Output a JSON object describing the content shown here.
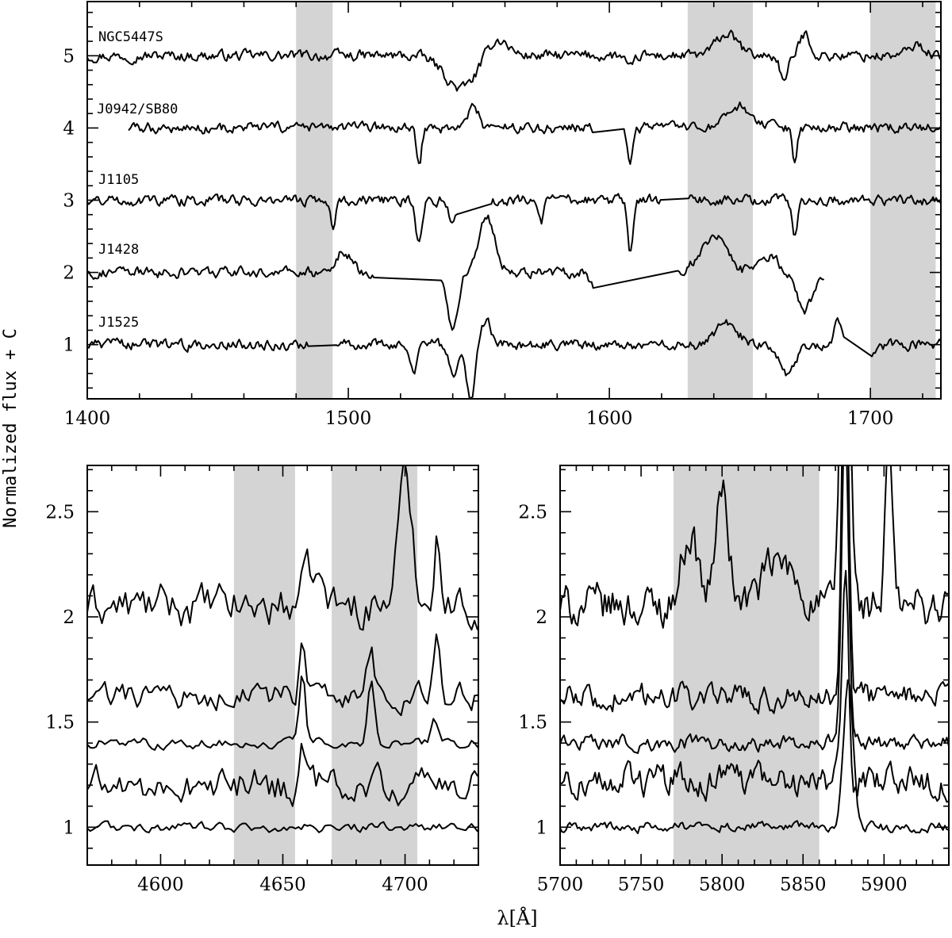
{
  "figure": {
    "ylabel": "Normalized flux + C",
    "xlabel": "λ[Å]"
  },
  "chart_data": [
    {
      "type": "line",
      "panel": "top",
      "xlim": [
        1400,
        1727
      ],
      "ylim": [
        0.25,
        5.75
      ],
      "xticks": [
        1400,
        1500,
        1600,
        1700
      ],
      "yticks": [
        1,
        2,
        3,
        4,
        5
      ],
      "shaded_regions": [
        [
          1480,
          1494
        ],
        [
          1630,
          1655
        ],
        [
          1700,
          1725
        ]
      ],
      "series": [
        {
          "name": "NGC5447S",
          "offset": 5,
          "x_range": [
            1400,
            1727
          ],
          "features": [
            [
              1543,
              -0.45,
              6
            ],
            [
              1557,
              0.25,
              4
            ],
            [
              1608,
              -0.2,
              1.5
            ],
            [
              1645,
              0.3,
              4
            ],
            [
              1667,
              -0.35,
              1.5
            ],
            [
              1675,
              0.3,
              2
            ],
            [
              1718,
              0.15,
              3
            ]
          ]
        },
        {
          "name": "J0942/SB80",
          "offset": 4,
          "x_range": [
            1416,
            1727
          ],
          "gaps": [
            [
              1594,
              1605
            ]
          ],
          "features": [
            [
              1527,
              -0.55,
              1
            ],
            [
              1548,
              0.3,
              2
            ],
            [
              1608,
              -0.5,
              1
            ],
            [
              1650,
              0.3,
              4
            ],
            [
              1671,
              -0.5,
              1
            ]
          ]
        },
        {
          "name": "J1105",
          "offset": 3,
          "x_range": [
            1400,
            1727
          ],
          "gaps": [
            [
              1542,
              1554
            ],
            [
              1620,
              1630
            ]
          ],
          "features": [
            [
              1494,
              -0.35,
              1
            ],
            [
              1527,
              -0.6,
              1.2
            ],
            [
              1540,
              -0.3,
              1.5
            ],
            [
              1574,
              -0.3,
              1
            ],
            [
              1608,
              -0.75,
              1
            ],
            [
              1671,
              -0.5,
              1
            ]
          ]
        },
        {
          "name": "J1428",
          "offset": 2,
          "x_range": [
            1400,
            1682
          ],
          "gaps": [
            [
              1510,
              1535
            ],
            [
              1594,
              1626
            ]
          ],
          "features": [
            [
              1498,
              0.3,
              3
            ],
            [
              1540,
              -0.8,
              2
            ],
            [
              1553,
              0.8,
              3
            ],
            [
              1595,
              -0.3,
              2
            ],
            [
              1640,
              0.5,
              5
            ],
            [
              1662,
              0.2,
              3
            ],
            [
              1675,
              -0.5,
              3
            ]
          ]
        },
        {
          "name": "J1525",
          "offset": 1,
          "x_range": [
            1400,
            1727
          ],
          "gaps": [
            [
              1485,
              1495
            ],
            [
              1690,
              1700
            ]
          ],
          "features": [
            [
              1525,
              -0.35,
              1.5
            ],
            [
              1540,
              -0.4,
              1.5
            ],
            [
              1547,
              -0.8,
              1.5
            ],
            [
              1553,
              0.3,
              2
            ],
            [
              1645,
              0.3,
              4
            ],
            [
              1668,
              -0.4,
              3
            ],
            [
              1688,
              0.3,
              2
            ],
            [
              1697,
              -0.6,
              2
            ]
          ]
        }
      ]
    },
    {
      "type": "line",
      "panel": "bottom-left",
      "xlim": [
        4570,
        4730
      ],
      "ylim": [
        0.82,
        2.72
      ],
      "xticks": [
        4600,
        4650,
        4700
      ],
      "yticks": [
        1,
        1.5,
        2,
        2.5
      ],
      "ytick_labels": [
        "1",
        "1.5",
        "2",
        "2.5"
      ],
      "shaded_regions": [
        [
          4630,
          4655
        ],
        [
          4670,
          4705
        ]
      ],
      "series": [
        {
          "offset": 2.05,
          "noise": 0.08,
          "features": [
            [
              4662,
              0.15,
              4
            ],
            [
              4700,
              0.6,
              3
            ],
            [
              4713,
              0.4,
              1.2
            ]
          ]
        },
        {
          "offset": 1.62,
          "noise": 0.05,
          "features": [
            [
              4658,
              0.3,
              1.2
            ],
            [
              4686,
              0.2,
              1.5
            ],
            [
              4713,
              0.3,
              1.2
            ]
          ]
        },
        {
          "offset": 1.4,
          "noise": 0.02,
          "features": [
            [
              4658,
              0.32,
              1.2
            ],
            [
              4686,
              0.3,
              1.5
            ],
            [
              4712,
              0.1,
              1.5
            ]
          ]
        },
        {
          "offset": 1.2,
          "noise": 0.07,
          "features": [
            [
              4658,
              0.15,
              1.2
            ]
          ]
        },
        {
          "offset": 1.0,
          "noise": 0.02,
          "features": []
        }
      ]
    },
    {
      "type": "line",
      "panel": "bottom-right",
      "xlim": [
        5700,
        5940
      ],
      "ylim": [
        0.82,
        2.72
      ],
      "xticks": [
        5700,
        5750,
        5800,
        5850,
        5900
      ],
      "yticks": [
        1,
        1.5,
        2,
        2.5
      ],
      "ytick_labels": [
        "1",
        "1.5",
        "2",
        "2.5"
      ],
      "shaded_regions": [
        [
          5770,
          5860
        ]
      ],
      "series": [
        {
          "offset": 2.05,
          "noise": 0.08,
          "features": [
            [
              5780,
              0.35,
              5
            ],
            [
              5800,
              0.55,
              4
            ],
            [
              5835,
              0.2,
              10
            ],
            [
              5876,
              2.5,
              2.5
            ],
            [
              5903,
              0.8,
              2
            ]
          ]
        },
        {
          "offset": 1.62,
          "noise": 0.05,
          "features": [
            [
              5876,
              2.0,
              2
            ]
          ]
        },
        {
          "offset": 1.4,
          "noise": 0.03,
          "features": [
            [
              5876,
              1.6,
              2
            ]
          ]
        },
        {
          "offset": 1.22,
          "noise": 0.06,
          "features": [
            [
              5876,
              1.0,
              2
            ]
          ]
        },
        {
          "offset": 1.0,
          "noise": 0.02,
          "features": [
            [
              5878,
              0.7,
              3
            ]
          ]
        }
      ]
    }
  ],
  "colors": {
    "band": "#d4d4d4",
    "line": "#000000"
  }
}
